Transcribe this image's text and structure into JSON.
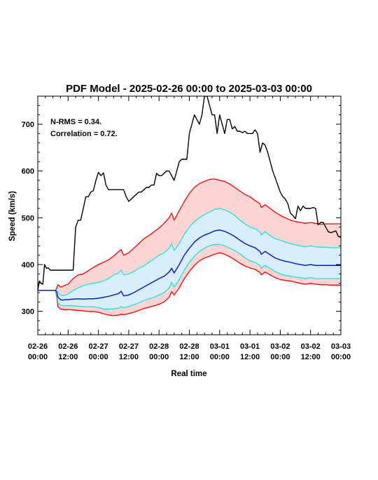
{
  "chart_data": {
    "type": "line",
    "title": "PDF Model - 2025-02-26 00:00 to 2025-03-03 00:00",
    "xlabel": "Real time",
    "ylabel": "Speed (km/s)",
    "xlim_hours": [
      0,
      120
    ],
    "ylim": [
      250,
      760
    ],
    "x_ticks": [
      {
        "hour": 0,
        "line1": "02-26",
        "line2": "00:00"
      },
      {
        "hour": 12,
        "line1": "02-26",
        "line2": "12:00"
      },
      {
        "hour": 24,
        "line1": "02-27",
        "line2": "00:00"
      },
      {
        "hour": 36,
        "line1": "02-27",
        "line2": "12:00"
      },
      {
        "hour": 48,
        "line1": "02-28",
        "line2": "00:00"
      },
      {
        "hour": 60,
        "line1": "02-28",
        "line2": "12:00"
      },
      {
        "hour": 72,
        "line1": "03-01",
        "line2": "00:00"
      },
      {
        "hour": 84,
        "line1": "03-01",
        "line2": "12:00"
      },
      {
        "hour": 96,
        "line1": "03-02",
        "line2": "00:00"
      },
      {
        "hour": 108,
        "line1": "03-02",
        "line2": "12:00"
      },
      {
        "hour": 120,
        "line1": "03-03",
        "line2": "00:00"
      }
    ],
    "y_ticks": [
      300,
      400,
      500,
      600,
      700
    ],
    "annotations": [
      "N-RMS = 0.34.",
      "Correlation = 0.72."
    ],
    "colors": {
      "observed": "#000000",
      "outer": "#ff0000",
      "outer_fill": "#fdd5d2",
      "inner": "#22e0e0",
      "inner_fill": "#d8eefa",
      "median": "#0a1ec8"
    },
    "series": [
      {
        "key": "observed",
        "x": [
          0,
          0.6,
          1.3,
          2.0,
          2.7,
          3.4,
          4.1,
          5,
          6,
          7,
          8,
          9,
          10,
          11,
          12,
          14,
          15,
          16,
          17,
          18,
          19,
          20,
          21,
          22,
          23,
          24,
          25,
          26,
          27,
          28,
          29,
          30,
          31,
          32,
          33,
          34,
          35,
          36,
          38,
          40,
          41,
          42,
          43,
          44,
          45,
          46,
          47,
          48,
          49,
          50,
          51,
          52,
          54,
          55,
          56,
          57,
          58,
          59,
          60,
          61,
          62,
          63,
          64,
          65,
          66,
          67,
          68,
          69,
          70,
          71,
          72,
          73,
          74,
          75,
          76,
          77,
          78,
          79,
          80,
          81,
          82,
          83,
          84,
          85,
          86,
          87,
          88,
          89,
          90,
          91,
          92,
          93,
          94,
          95,
          96,
          97,
          98,
          99,
          100,
          101,
          102,
          103,
          104,
          105,
          106,
          107,
          108,
          109,
          110,
          111,
          112,
          113,
          114,
          115,
          116,
          117,
          118,
          119,
          120
        ],
        "y": [
          345,
          365,
          360,
          358,
          400,
          392,
          393,
          388,
          388,
          388,
          388,
          388,
          388,
          388,
          388,
          388,
          480,
          495,
          495,
          520,
          545,
          545,
          555,
          558,
          580,
          597,
          590,
          596,
          570,
          560,
          560,
          560,
          560,
          560,
          560,
          560,
          545,
          535,
          545,
          555,
          555,
          560,
          565,
          565,
          570,
          570,
          595,
          590,
          590,
          595,
          600,
          600,
          580,
          600,
          620,
          625,
          625,
          625,
          680,
          700,
          720,
          710,
          700,
          720,
          760,
          760,
          740,
          720,
          720,
          680,
          720,
          700,
          680,
          710,
          710,
          690,
          695,
          685,
          685,
          682,
          685,
          680,
          680,
          680,
          688,
          680,
          640,
          660,
          655,
          640,
          620,
          600,
          585,
          570,
          555,
          545,
          540,
          530,
          510,
          505,
          498,
          525,
          515,
          525,
          520,
          520,
          520,
          522,
          520,
          485,
          490,
          490,
          480,
          470,
          468,
          470,
          472,
          460,
          458
        ]
      },
      {
        "key": "upper_outer",
        "x": [
          0,
          7,
          7.5,
          8,
          9,
          10,
          11,
          12,
          14,
          16,
          18,
          20,
          22,
          24,
          26,
          28,
          30,
          32,
          33,
          34,
          36,
          38,
          40,
          42,
          44,
          46,
          48,
          50,
          52,
          53,
          54,
          56,
          58,
          60,
          62,
          64,
          66,
          68,
          70,
          72,
          74,
          76,
          78,
          80,
          82,
          84,
          86,
          88,
          88.5,
          90,
          92,
          94,
          96,
          98,
          100,
          102,
          104,
          106,
          108,
          110,
          112,
          114,
          116,
          118,
          120
        ],
        "y": [
          345,
          345,
          350,
          357,
          352,
          354,
          356,
          358,
          370,
          378,
          380,
          387,
          394,
          400,
          405,
          410,
          418,
          428,
          432,
          420,
          425,
          435,
          445,
          455,
          462,
          470,
          478,
          488,
          500,
          510,
          495,
          515,
          535,
          552,
          565,
          573,
          578,
          582,
          583,
          580,
          578,
          572,
          565,
          557,
          550,
          545,
          537,
          530,
          522,
          528,
          520,
          512,
          505,
          500,
          495,
          492,
          490,
          488,
          490,
          488,
          486,
          487,
          487,
          487,
          487
        ]
      },
      {
        "key": "upper_inner",
        "x": [
          0,
          7,
          7.5,
          8,
          9,
          10,
          11,
          12,
          14,
          16,
          18,
          20,
          22,
          24,
          26,
          28,
          30,
          32,
          33,
          34,
          36,
          38,
          40,
          42,
          44,
          46,
          48,
          50,
          52,
          53,
          54,
          56,
          58,
          60,
          62,
          64,
          66,
          68,
          70,
          72,
          74,
          76,
          78,
          80,
          82,
          84,
          86,
          88,
          88.5,
          90,
          92,
          94,
          96,
          98,
          100,
          102,
          104,
          106,
          108,
          110,
          112,
          114,
          116,
          118,
          120
        ],
        "y": [
          345,
          345,
          345,
          340,
          335,
          334,
          335,
          337,
          345,
          350,
          355,
          358,
          360,
          362,
          365,
          370,
          378,
          382,
          388,
          378,
          380,
          385,
          392,
          397,
          405,
          412,
          420,
          425,
          435,
          445,
          430,
          445,
          465,
          480,
          492,
          500,
          507,
          512,
          518,
          520,
          517,
          512,
          505,
          495,
          487,
          480,
          477,
          470,
          463,
          470,
          462,
          455,
          452,
          448,
          445,
          442,
          440,
          438,
          440,
          438,
          437,
          437,
          436,
          436,
          436
        ]
      },
      {
        "key": "median",
        "x": [
          0,
          7,
          7.5,
          8,
          9,
          10,
          11,
          12,
          14,
          16,
          18,
          20,
          22,
          24,
          26,
          28,
          30,
          32,
          33,
          34,
          36,
          38,
          40,
          42,
          44,
          46,
          48,
          50,
          52,
          53,
          54,
          56,
          58,
          60,
          62,
          64,
          66,
          68,
          70,
          72,
          74,
          76,
          78,
          80,
          82,
          84,
          86,
          88,
          88.5,
          90,
          92,
          94,
          96,
          98,
          100,
          102,
          104,
          106,
          108,
          110,
          112,
          114,
          116,
          118,
          120
        ],
        "y": [
          345,
          345,
          340,
          330,
          325,
          324,
          325,
          325,
          326,
          327,
          326,
          327,
          327,
          328,
          330,
          332,
          335,
          338,
          343,
          333,
          335,
          340,
          346,
          352,
          358,
          364,
          370,
          375,
          384,
          392,
          382,
          400,
          420,
          435,
          448,
          457,
          463,
          467,
          472,
          474,
          471,
          466,
          460,
          452,
          445,
          440,
          436,
          428,
          422,
          428,
          421,
          414,
          410,
          407,
          405,
          402,
          400,
          398,
          400,
          398,
          398,
          398,
          398,
          398,
          398
        ]
      },
      {
        "key": "lower_inner",
        "x": [
          0,
          7,
          7.5,
          8,
          9,
          10,
          11,
          12,
          14,
          16,
          18,
          20,
          22,
          24,
          26,
          28,
          30,
          32,
          33,
          34,
          36,
          38,
          40,
          42,
          44,
          46,
          48,
          50,
          52,
          53,
          54,
          56,
          58,
          60,
          62,
          64,
          66,
          68,
          70,
          72,
          74,
          76,
          78,
          80,
          82,
          84,
          86,
          88,
          88.5,
          90,
          92,
          94,
          96,
          98,
          100,
          102,
          104,
          106,
          108,
          110,
          112,
          114,
          116,
          118,
          120
        ],
        "y": [
          345,
          345,
          335,
          318,
          313,
          312,
          312,
          312,
          312,
          311,
          310,
          310,
          310,
          308,
          305,
          305,
          305,
          307,
          310,
          308,
          310,
          314,
          318,
          323,
          327,
          330,
          335,
          340,
          350,
          362,
          352,
          368,
          388,
          405,
          418,
          428,
          435,
          440,
          443,
          443,
          440,
          435,
          430,
          423,
          415,
          408,
          405,
          398,
          392,
          398,
          392,
          385,
          380,
          377,
          375,
          373,
          372,
          370,
          372,
          370,
          370,
          370,
          370,
          370,
          370
        ]
      },
      {
        "key": "lower_outer",
        "x": [
          0,
          7,
          7.5,
          8,
          9,
          10,
          11,
          12,
          14,
          16,
          18,
          20,
          22,
          24,
          26,
          28,
          30,
          32,
          33,
          34,
          36,
          38,
          40,
          42,
          44,
          46,
          48,
          50,
          52,
          53,
          54,
          56,
          58,
          60,
          62,
          64,
          66,
          68,
          70,
          72,
          74,
          76,
          78,
          80,
          82,
          84,
          86,
          88,
          88.5,
          90,
          92,
          94,
          96,
          98,
          100,
          102,
          104,
          106,
          108,
          110,
          112,
          114,
          116,
          118,
          120
        ],
        "y": [
          345,
          345,
          330,
          310,
          305,
          304,
          303,
          304,
          303,
          302,
          301,
          300,
          300,
          298,
          295,
          292,
          291,
          292,
          294,
          293,
          295,
          298,
          302,
          306,
          309,
          312,
          315,
          320,
          330,
          342,
          335,
          350,
          370,
          385,
          398,
          408,
          414,
          418,
          422,
          425,
          422,
          417,
          410,
          403,
          397,
          393,
          390,
          383,
          378,
          384,
          378,
          372,
          368,
          366,
          365,
          362,
          360,
          358,
          360,
          358,
          357,
          357,
          356,
          356,
          356
        ]
      }
    ]
  }
}
